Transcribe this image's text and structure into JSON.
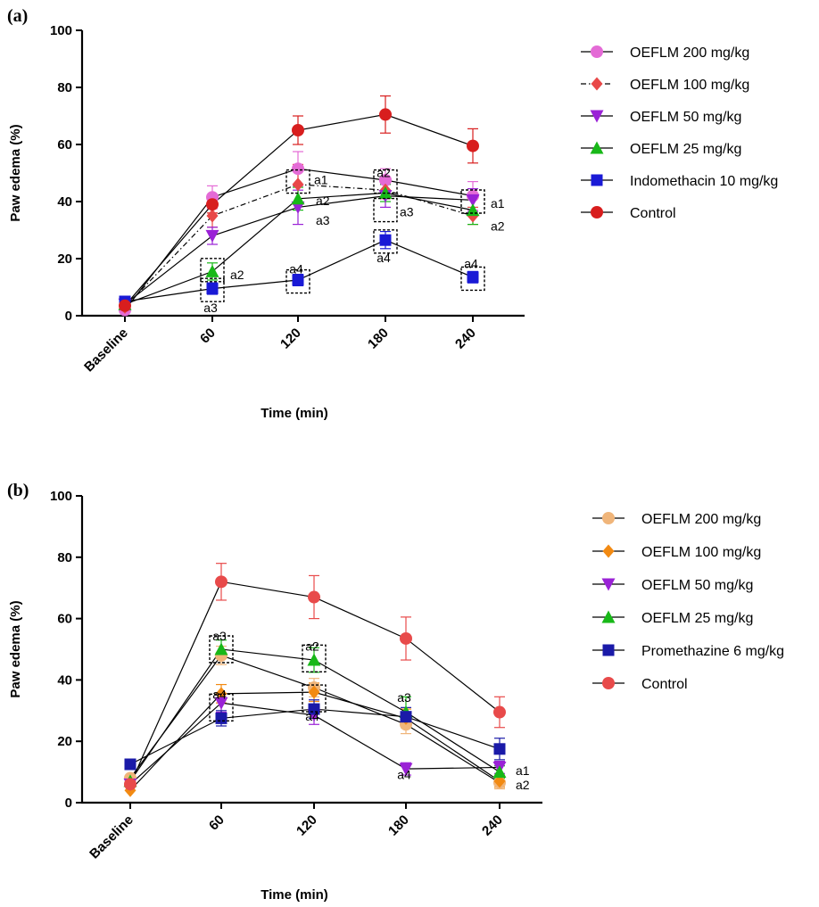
{
  "chart_data": [
    {
      "panel": "(a)",
      "type": "line",
      "xlabel": "Time (min)",
      "ylabel": "Paw edema (%)",
      "categories": [
        "Baseline",
        "60",
        "120",
        "180",
        "240"
      ],
      "ylim": [
        0,
        100
      ],
      "yticks": [
        0,
        20,
        40,
        60,
        80,
        100
      ],
      "legend_position": "right",
      "series": [
        {
          "name": "OEFLM 200 mg/kg",
          "color": "#e46bd6",
          "marker": "circle",
          "line": "solid",
          "values": [
            2,
            41.5,
            51.5,
            47.5,
            42
          ],
          "errors": [
            0,
            4,
            6,
            4,
            5
          ]
        },
        {
          "name": "OEFLM 100 mg/kg",
          "color": "#e84848",
          "marker": "diamond",
          "line": "dashdot",
          "values": [
            3,
            35,
            46,
            44,
            35
          ],
          "errors": [
            0,
            4,
            7,
            3,
            3
          ]
        },
        {
          "name": "OEFLM 50 mg/kg",
          "color": "#9a22d6",
          "marker": "triangle-down",
          "line": "solid",
          "values": [
            4,
            28,
            38,
            42,
            40.5
          ],
          "errors": [
            0,
            3,
            6,
            4,
            4
          ]
        },
        {
          "name": "OEFLM 25 mg/kg",
          "color": "#18b818",
          "marker": "triangle-up",
          "line": "solid",
          "values": [
            4,
            15.5,
            41,
            43,
            37
          ],
          "errors": [
            0,
            3,
            4,
            3,
            5
          ]
        },
        {
          "name": "Indomethacin 10 mg/kg",
          "color": "#1a1ad6",
          "marker": "square",
          "line": "solid",
          "values": [
            5,
            9.5,
            12.5,
            26.5,
            13.5
          ],
          "errors": [
            0,
            2,
            2,
            3,
            2
          ]
        },
        {
          "name": "Control",
          "color": "#d81e1e",
          "marker": "circle",
          "line": "solid",
          "values": [
            3.5,
            39,
            65,
            70.5,
            59.5
          ],
          "errors": [
            0,
            3,
            5,
            6.5,
            6
          ]
        }
      ],
      "annotations": [
        {
          "text": "a2",
          "x": "60",
          "y": 16,
          "box": true
        },
        {
          "text": "a3",
          "x": "60",
          "y": 9,
          "box": true
        },
        {
          "text": "a1",
          "x": "120",
          "y": 47,
          "box": true
        },
        {
          "text": "a2",
          "x": "120",
          "y": 41,
          "box": false
        },
        {
          "text": "a3",
          "x": "120",
          "y": 34,
          "box": false
        },
        {
          "text": "a4",
          "x": "120",
          "y": 12,
          "box": true
        },
        {
          "text": "a2",
          "x": "180",
          "y": 47,
          "box": true
        },
        {
          "text": "a3",
          "x": "180",
          "y": 37,
          "box": true
        },
        {
          "text": "a4",
          "x": "180",
          "y": 26,
          "box": true
        },
        {
          "text": "a1",
          "x": "240",
          "y": 40,
          "box": true
        },
        {
          "text": "a2",
          "x": "240",
          "y": 33,
          "box": false
        },
        {
          "text": "a4",
          "x": "240",
          "y": 13,
          "box": true
        }
      ]
    },
    {
      "panel": "(b)",
      "type": "line",
      "xlabel": "Time (min)",
      "ylabel": "Paw edema (%)",
      "categories": [
        "Baseline",
        "60",
        "120",
        "180",
        "240"
      ],
      "ylim": [
        0,
        100
      ],
      "yticks": [
        0,
        20,
        40,
        60,
        80,
        100
      ],
      "legend_position": "right",
      "series": [
        {
          "name": "OEFLM 200 mg/kg",
          "color": "#f0b57a",
          "marker": "circle",
          "line": "solid",
          "values": [
            8,
            48,
            37.5,
            25.5,
            6.5
          ],
          "errors": [
            0,
            3,
            3,
            3,
            2
          ]
        },
        {
          "name": "OEFLM 100 mg/kg",
          "color": "#f28a12",
          "marker": "diamond",
          "line": "solid",
          "values": [
            4,
            35.5,
            36,
            27.5,
            7
          ],
          "errors": [
            0,
            3,
            3,
            3,
            2
          ]
        },
        {
          "name": "OEFLM 50 mg/kg",
          "color": "#9a22d6",
          "marker": "triangle-down",
          "line": "solid",
          "values": [
            6,
            32.5,
            28.5,
            11,
            11.5
          ],
          "errors": [
            0,
            3,
            3,
            2,
            2
          ]
        },
        {
          "name": "OEFLM 25 mg/kg",
          "color": "#18b818",
          "marker": "triangle-up",
          "line": "solid",
          "values": [
            7,
            50,
            46.5,
            29.5,
            10
          ],
          "errors": [
            0,
            3,
            4,
            5,
            2
          ]
        },
        {
          "name": "Promethazine 6 mg/kg",
          "color": "#1a1aa8",
          "marker": "square",
          "line": "solid",
          "values": [
            12.5,
            27.5,
            30.5,
            28,
            17.5
          ],
          "errors": [
            0,
            2.5,
            3,
            3,
            3.5
          ]
        },
        {
          "name": "Control",
          "color": "#e84a4a",
          "marker": "circle",
          "line": "solid",
          "values": [
            6,
            72,
            67,
            53.5,
            29.5
          ],
          "errors": [
            0,
            6,
            7,
            7,
            5
          ]
        }
      ],
      "annotations": [
        {
          "text": "a3",
          "x": "60",
          "y": 50,
          "box": true
        },
        {
          "text": "a4",
          "x": "60",
          "y": 31,
          "box": true
        },
        {
          "text": "a2",
          "x": "120",
          "y": 47,
          "box": true
        },
        {
          "text": "a4",
          "x": "120",
          "y": 34,
          "box": true
        },
        {
          "text": "a3",
          "x": "180",
          "y": 32,
          "box": false
        },
        {
          "text": "a4",
          "x": "180",
          "y": 12,
          "box": false
        },
        {
          "text": "a1",
          "x": "240",
          "y": 11,
          "box": false
        },
        {
          "text": "a2",
          "x": "240",
          "y": 7,
          "box": false
        }
      ]
    }
  ]
}
